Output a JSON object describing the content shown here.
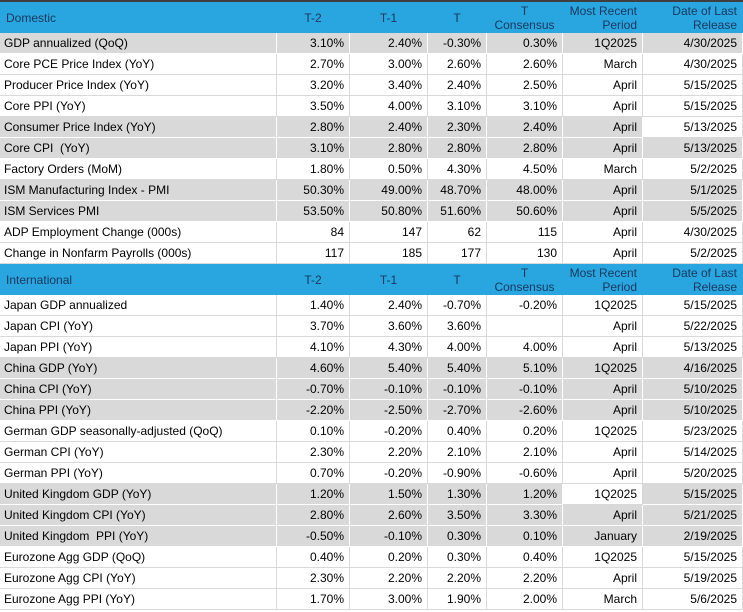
{
  "colors": {
    "header_bg": "#29A6DF",
    "header_text": "#17375E",
    "shaded_row_bg": "#D9D9D9",
    "gridline": "#D9D9D9",
    "body_text": "#000000"
  },
  "sections": [
    {
      "title": "Domestic",
      "columns": [
        "T-2",
        "T-1",
        "T",
        "T\nConsensus",
        "Most Recent\nPeriod",
        "Date of Last\nRelease"
      ],
      "rows": [
        {
          "label": "GDP annualized (QoQ)",
          "values": [
            "3.10%",
            "2.40%",
            "-0.30%",
            "0.30%",
            "1Q2025",
            "4/30/2025"
          ],
          "shaded": true,
          "white_cells": []
        },
        {
          "label": "Core PCE Price Index (YoY)",
          "values": [
            "2.70%",
            "3.00%",
            "2.60%",
            "2.60%",
            "March",
            "4/30/2025"
          ],
          "shaded": false,
          "white_cells": []
        },
        {
          "label": "Producer Price Index (YoY)",
          "values": [
            "3.20%",
            "3.40%",
            "2.40%",
            "2.50%",
            "April",
            "5/15/2025"
          ],
          "shaded": false,
          "white_cells": []
        },
        {
          "label": "Core PPI (YoY)",
          "values": [
            "3.50%",
            "4.00%",
            "3.10%",
            "3.10%",
            "April",
            "5/15/2025"
          ],
          "shaded": false,
          "white_cells": []
        },
        {
          "label": "Consumer Price Index (YoY)",
          "values": [
            "2.80%",
            "2.40%",
            "2.30%",
            "2.40%",
            "April",
            "5/13/2025"
          ],
          "shaded": true,
          "white_cells": [
            5
          ]
        },
        {
          "label": "Core CPI  (YoY)",
          "values": [
            "3.10%",
            "2.80%",
            "2.80%",
            "2.80%",
            "April",
            "5/13/2025"
          ],
          "shaded": true,
          "white_cells": []
        },
        {
          "label": "Factory Orders (MoM)",
          "values": [
            "1.80%",
            "0.50%",
            "4.30%",
            "4.50%",
            "March",
            "5/2/2025"
          ],
          "shaded": false,
          "white_cells": []
        },
        {
          "label": "ISM Manufacturing Index - PMI",
          "values": [
            "50.30%",
            "49.00%",
            "48.70%",
            "48.00%",
            "April",
            "5/1/2025"
          ],
          "shaded": true,
          "white_cells": []
        },
        {
          "label": "ISM Services PMI",
          "values": [
            "53.50%",
            "50.80%",
            "51.60%",
            "50.60%",
            "April",
            "5/5/2025"
          ],
          "shaded": true,
          "white_cells": []
        },
        {
          "label": "ADP Employment Change (000s)",
          "values": [
            "84",
            "147",
            "62",
            "115",
            "April",
            "4/30/2025"
          ],
          "shaded": false,
          "white_cells": []
        },
        {
          "label": "Change in Nonfarm Payrolls (000s)",
          "values": [
            "117",
            "185",
            "177",
            "130",
            "April",
            "5/2/2025"
          ],
          "shaded": false,
          "white_cells": []
        }
      ]
    },
    {
      "title": "International",
      "columns": [
        "T-2",
        "T-1",
        "T",
        "T\nConsensus",
        "Most Recent\nPeriod",
        "Date of Last\nRelease"
      ],
      "rows": [
        {
          "label": "Japan GDP annualized",
          "values": [
            "1.40%",
            "2.40%",
            "-0.70%",
            "-0.20%",
            "1Q2025",
            "5/15/2025"
          ],
          "shaded": false,
          "white_cells": []
        },
        {
          "label": "Japan CPI (YoY)",
          "values": [
            "3.70%",
            "3.60%",
            "3.60%",
            "",
            "April",
            "5/22/2025"
          ],
          "shaded": false,
          "white_cells": []
        },
        {
          "label": "Japan PPI (YoY)",
          "values": [
            "4.10%",
            "4.30%",
            "4.00%",
            "4.00%",
            "April",
            "5/13/2025"
          ],
          "shaded": false,
          "white_cells": []
        },
        {
          "label": "China GDP (YoY)",
          "values": [
            "4.60%",
            "5.40%",
            "5.40%",
            "5.10%",
            "1Q2025",
            "4/16/2025"
          ],
          "shaded": true,
          "white_cells": []
        },
        {
          "label": "China CPI (YoY)",
          "values": [
            "-0.70%",
            "-0.10%",
            "-0.10%",
            "-0.10%",
            "April",
            "5/10/2025"
          ],
          "shaded": true,
          "white_cells": []
        },
        {
          "label": "China PPI (YoY)",
          "values": [
            "-2.20%",
            "-2.50%",
            "-2.70%",
            "-2.60%",
            "April",
            "5/10/2025"
          ],
          "shaded": true,
          "white_cells": []
        },
        {
          "label": "German GDP seasonally-adjusted (QoQ)",
          "values": [
            "0.10%",
            "-0.20%",
            "0.40%",
            "0.20%",
            "1Q2025",
            "5/23/2025"
          ],
          "shaded": false,
          "white_cells": []
        },
        {
          "label": "German CPI (YoY)",
          "values": [
            "2.30%",
            "2.20%",
            "2.10%",
            "2.10%",
            "April",
            "5/14/2025"
          ],
          "shaded": false,
          "white_cells": []
        },
        {
          "label": "German PPI (YoY)",
          "values": [
            "0.70%",
            "-0.20%",
            "-0.90%",
            "-0.60%",
            "April",
            "5/20/2025"
          ],
          "shaded": false,
          "white_cells": []
        },
        {
          "label": "United Kingdom GDP (YoY)",
          "values": [
            "1.20%",
            "1.50%",
            "1.30%",
            "1.20%",
            "1Q2025",
            "5/15/2025"
          ],
          "shaded": true,
          "white_cells": [
            4
          ]
        },
        {
          "label": "United Kingdom CPI (YoY)",
          "values": [
            "2.80%",
            "2.60%",
            "3.50%",
            "3.30%",
            "April",
            "5/21/2025"
          ],
          "shaded": true,
          "white_cells": []
        },
        {
          "label": "United Kingdom  PPI (YoY)",
          "values": [
            "-0.50%",
            "-0.10%",
            "0.30%",
            "0.10%",
            "January",
            "2/19/2025"
          ],
          "shaded": true,
          "white_cells": []
        },
        {
          "label": "Eurozone Agg GDP (QoQ)",
          "values": [
            "0.40%",
            "0.20%",
            "0.30%",
            "0.40%",
            "1Q2025",
            "5/15/2025"
          ],
          "shaded": false,
          "white_cells": []
        },
        {
          "label": "Eurozone Agg CPI (YoY)",
          "values": [
            "2.30%",
            "2.20%",
            "2.20%",
            "2.20%",
            "April",
            "5/19/2025"
          ],
          "shaded": false,
          "white_cells": []
        },
        {
          "label": "Eurozone Agg PPI (YoY)",
          "values": [
            "1.70%",
            "3.00%",
            "1.90%",
            "2.00%",
            "March",
            "5/6/2025"
          ],
          "shaded": false,
          "white_cells": []
        }
      ]
    }
  ]
}
